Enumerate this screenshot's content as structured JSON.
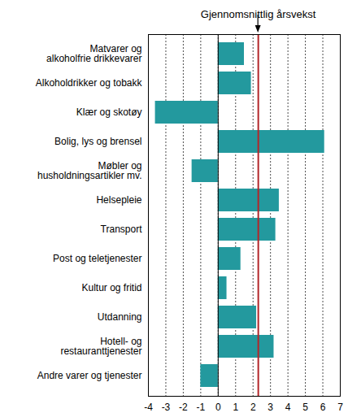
{
  "chart_data": {
    "type": "bar",
    "orientation": "horizontal",
    "categories": [
      "Matvarer og\nalkoholfrie drikkevarer",
      "Alkoholdrikker og tobakk",
      "Klær og skotøy",
      "Bolig, lys og brensel",
      "Møbler og\nhusholdningsartikler mv.",
      "Helsepleie",
      "Transport",
      "Post og teletjenester",
      "Kultur og fritid",
      "Utdanning",
      "Hotell- og\nrestauranttjenester",
      "Andre varer og tjenester"
    ],
    "values": [
      1.5,
      1.9,
      -3.6,
      6.1,
      -1.5,
      3.5,
      3.3,
      1.3,
      0.5,
      2.2,
      3.2,
      -1.0
    ],
    "color": "#23999e",
    "xlim": [
      -4,
      7
    ],
    "xticks": [
      -4,
      -3,
      -2,
      -1,
      0,
      1,
      2,
      3,
      4,
      5,
      6,
      7
    ],
    "grid": true,
    "annotations": [
      {
        "text": "Gjennomsnittlig årsvekst",
        "x": 2.3,
        "color": "#b3262a"
      }
    ]
  }
}
